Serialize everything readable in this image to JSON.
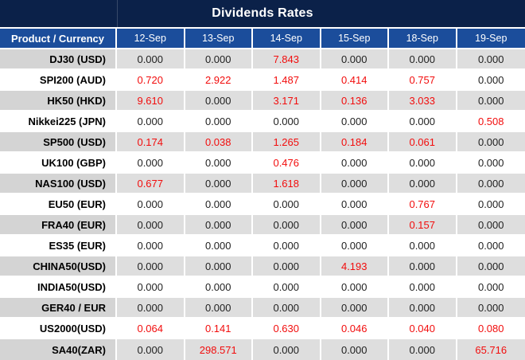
{
  "title": "Dividends Rates",
  "colors": {
    "title_bar_bg": "#0b2149",
    "header_row_bg": "#1b4d9b",
    "header_text": "#ffffff",
    "striped_row_bg": "#dedede",
    "striped_product_cell_bg": "#d4d4d4",
    "white_row_bg": "#ffffff",
    "value_text": "#1f1f1f",
    "nonzero_value_red": "#f20d0d",
    "cell_border": "#ffffff"
  },
  "table": {
    "product_header": "Product / Currency",
    "date_headers": [
      "12-Sep",
      "13-Sep",
      "14-Sep",
      "15-Sep",
      "18-Sep",
      "19-Sep"
    ],
    "rows": [
      {
        "product": "DJ30 (USD)",
        "values": [
          "0.000",
          "0.000",
          "7.843",
          "0.000",
          "0.000",
          "0.000"
        ]
      },
      {
        "product": "SPI200 (AUD)",
        "values": [
          "0.720",
          "2.922",
          "1.487",
          "0.414",
          "0.757",
          "0.000"
        ]
      },
      {
        "product": "HK50 (HKD)",
        "values": [
          "9.610",
          "0.000",
          "3.171",
          "0.136",
          "3.033",
          "0.000"
        ]
      },
      {
        "product": "Nikkei225 (JPN)",
        "values": [
          "0.000",
          "0.000",
          "0.000",
          "0.000",
          "0.000",
          "0.508"
        ]
      },
      {
        "product": "SP500 (USD)",
        "values": [
          "0.174",
          "0.038",
          "1.265",
          "0.184",
          "0.061",
          "0.000"
        ]
      },
      {
        "product": "UK100 (GBP)",
        "values": [
          "0.000",
          "0.000",
          "0.476",
          "0.000",
          "0.000",
          "0.000"
        ]
      },
      {
        "product": "NAS100 (USD)",
        "values": [
          "0.677",
          "0.000",
          "1.618",
          "0.000",
          "0.000",
          "0.000"
        ]
      },
      {
        "product": "EU50 (EUR)",
        "values": [
          "0.000",
          "0.000",
          "0.000",
          "0.000",
          "0.767",
          "0.000"
        ]
      },
      {
        "product": "FRA40 (EUR)",
        "values": [
          "0.000",
          "0.000",
          "0.000",
          "0.000",
          "0.157",
          "0.000"
        ]
      },
      {
        "product": "ES35 (EUR)",
        "values": [
          "0.000",
          "0.000",
          "0.000",
          "0.000",
          "0.000",
          "0.000"
        ]
      },
      {
        "product": "CHINA50(USD)",
        "values": [
          "0.000",
          "0.000",
          "0.000",
          "4.193",
          "0.000",
          "0.000"
        ]
      },
      {
        "product": "INDIA50(USD)",
        "values": [
          "0.000",
          "0.000",
          "0.000",
          "0.000",
          "0.000",
          "0.000"
        ]
      },
      {
        "product": "GER40 / EUR",
        "values": [
          "0.000",
          "0.000",
          "0.000",
          "0.000",
          "0.000",
          "0.000"
        ]
      },
      {
        "product": "US2000(USD)",
        "values": [
          "0.064",
          "0.141",
          "0.630",
          "0.046",
          "0.040",
          "0.080"
        ]
      },
      {
        "product": "SA40(ZAR)",
        "values": [
          "0.000",
          "298.571",
          "0.000",
          "0.000",
          "0.000",
          "65.716"
        ]
      }
    ]
  },
  "chart_data": {
    "type": "table",
    "title": "Dividends Rates",
    "columns": [
      "Product / Currency",
      "12-Sep",
      "13-Sep",
      "14-Sep",
      "15-Sep",
      "18-Sep",
      "19-Sep"
    ],
    "rows": [
      [
        "DJ30 (USD)",
        0.0,
        0.0,
        7.843,
        0.0,
        0.0,
        0.0
      ],
      [
        "SPI200 (AUD)",
        0.72,
        2.922,
        1.487,
        0.414,
        0.757,
        0.0
      ],
      [
        "HK50 (HKD)",
        9.61,
        0.0,
        3.171,
        0.136,
        3.033,
        0.0
      ],
      [
        "Nikkei225 (JPN)",
        0.0,
        0.0,
        0.0,
        0.0,
        0.0,
        0.508
      ],
      [
        "SP500 (USD)",
        0.174,
        0.038,
        1.265,
        0.184,
        0.061,
        0.0
      ],
      [
        "UK100 (GBP)",
        0.0,
        0.0,
        0.476,
        0.0,
        0.0,
        0.0
      ],
      [
        "NAS100 (USD)",
        0.677,
        0.0,
        1.618,
        0.0,
        0.0,
        0.0
      ],
      [
        "EU50 (EUR)",
        0.0,
        0.0,
        0.0,
        0.0,
        0.767,
        0.0
      ],
      [
        "FRA40 (EUR)",
        0.0,
        0.0,
        0.0,
        0.0,
        0.157,
        0.0
      ],
      [
        "ES35 (EUR)",
        0.0,
        0.0,
        0.0,
        0.0,
        0.0,
        0.0
      ],
      [
        "CHINA50(USD)",
        0.0,
        0.0,
        0.0,
        4.193,
        0.0,
        0.0
      ],
      [
        "INDIA50(USD)",
        0.0,
        0.0,
        0.0,
        0.0,
        0.0,
        0.0
      ],
      [
        "GER40 / EUR",
        0.0,
        0.0,
        0.0,
        0.0,
        0.0,
        0.0
      ],
      [
        "US2000(USD)",
        0.064,
        0.141,
        0.63,
        0.046,
        0.04,
        0.08
      ],
      [
        "SA40(ZAR)",
        0.0,
        298.571,
        0.0,
        0.0,
        0.0,
        65.716
      ]
    ],
    "notes": "Non-zero values are rendered in red; zero values in black. Rows alternate gray/white starting gray.",
    "value_format": "3 decimal places"
  }
}
